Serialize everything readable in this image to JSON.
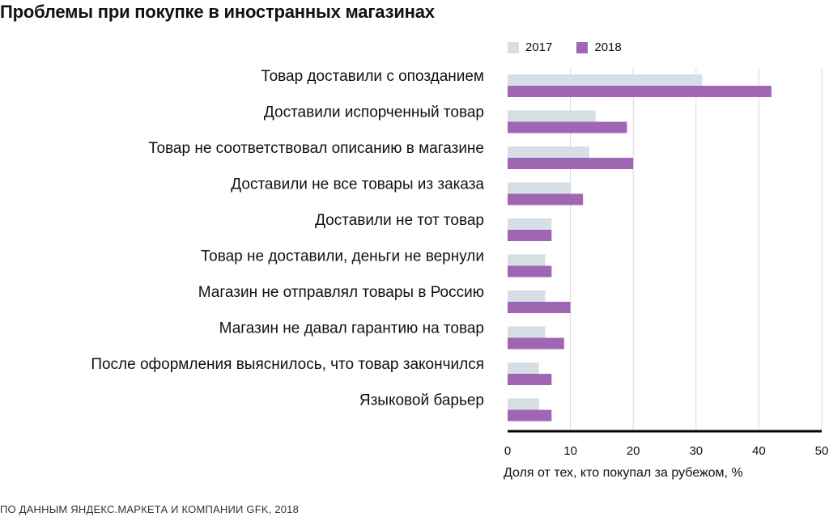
{
  "colors": {
    "y2017": "#d6dfe6",
    "y2018": "#a166b3",
    "grid": "#d9d9d9",
    "axis": "#000000"
  },
  "chart_data": {
    "type": "bar",
    "orientation": "horizontal",
    "title": "Проблемы при покупке в иностранных магазинах",
    "categories": [
      "Товар доставили с опозданием",
      "Доставили испорченный товар",
      "Товар не соответствовал описанию в магазине",
      "Доставили не все товары из заказа",
      "Доставили не тот товар",
      "Товар не доставили, деньги не вернули",
      "Магазин не отправлял товары в Россию",
      "Магазин не давал гарантию на товар",
      "После оформления выяснилось, что товар закончился",
      "Языковой барьер"
    ],
    "series": [
      {
        "name": "2017",
        "values": [
          31,
          14,
          13,
          10,
          7,
          6,
          6,
          6,
          5,
          5
        ]
      },
      {
        "name": "2018",
        "values": [
          42,
          19,
          20,
          12,
          7,
          7,
          10,
          9,
          7,
          7
        ]
      }
    ],
    "xlabel": "Доля от тех, кто покупал за рубежом, %",
    "xlim": [
      0,
      50
    ],
    "xticks": [
      0,
      10,
      20,
      30,
      40,
      50
    ],
    "legend_position": "top"
  },
  "source": "ПО ДАННЫМ ЯНДЕКС.МАРКЕТА И КОМПАНИИ GFK, 2018"
}
